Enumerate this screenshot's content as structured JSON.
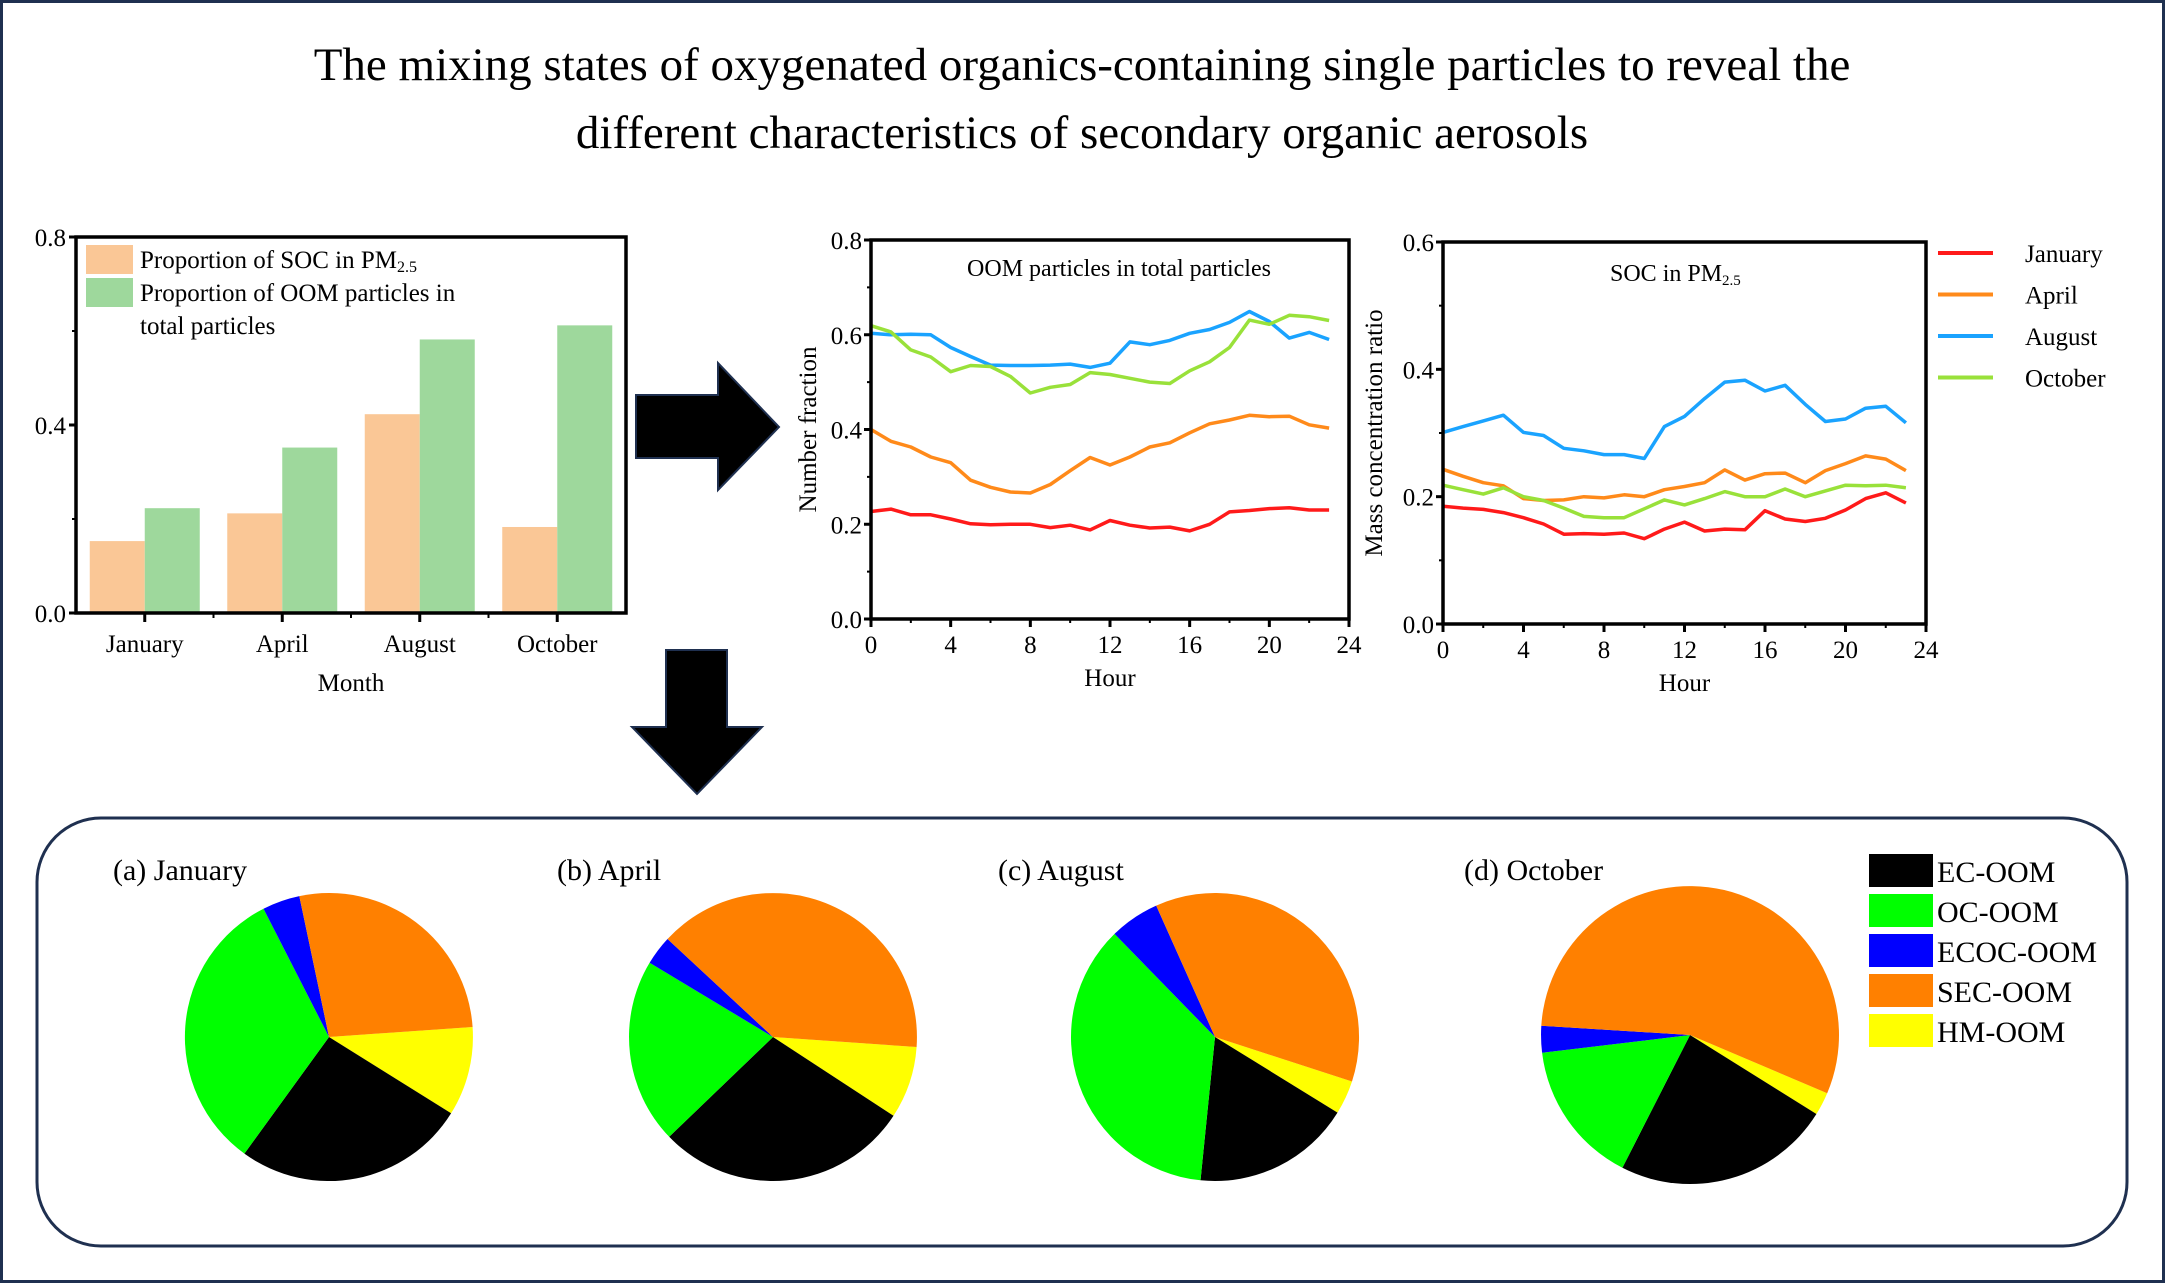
{
  "title": {
    "line1": "The mixing states of oxygenated organics-containing single particles to reveal the",
    "line2": "different characteristics of secondary organic aerosols"
  },
  "colors": {
    "frame": "#1f3050",
    "bar_soc": "#fac796",
    "bar_oom": "#9ed89c",
    "January": "#ff1a1a",
    "April": "#ff8a1a",
    "August": "#1aa3ff",
    "October": "#99e13a",
    "EC-OOM": "#000000",
    "OC-OOM": "#00ff00",
    "ECOC-OOM": "#0000ff",
    "SEC-OOM": "#ff8000",
    "HM-OOM": "#ffff00"
  },
  "chart_data": [
    {
      "type": "bar",
      "categories": [
        "January",
        "April",
        "August",
        "October"
      ],
      "xlabel": "Month",
      "ylabel": "",
      "ylim": [
        0,
        0.8
      ],
      "yticks": [
        "0.0",
        "0.4",
        "0.8"
      ],
      "legend_position": "top-left",
      "series": [
        {
          "name_main": "Proportion of SOC in PM",
          "name_sub": "2.5",
          "values": [
            0.153,
            0.212,
            0.423,
            0.183
          ]
        },
        {
          "name_line1": "Proportion of OOM particles in",
          "name_line2": "total particles",
          "values": [
            0.223,
            0.352,
            0.582,
            0.612
          ]
        }
      ]
    },
    {
      "type": "line",
      "title": "OOM particles in total particles",
      "xlabel": "Hour",
      "ylabel": "Number fraction",
      "xlim": [
        0,
        24
      ],
      "ylim": [
        0,
        0.8
      ],
      "xticks": [
        "0",
        "4",
        "8",
        "12",
        "16",
        "20",
        "24"
      ],
      "yticks": [
        "0.0",
        "0.2",
        "0.4",
        "0.6",
        "0.8"
      ],
      "x": [
        0,
        1,
        2,
        3,
        4,
        5,
        6,
        7,
        8,
        9,
        10,
        11,
        12,
        13,
        14,
        15,
        16,
        17,
        18,
        19,
        20,
        21,
        22,
        23
      ],
      "series": [
        {
          "name": "January",
          "values": [
            0.227,
            0.232,
            0.22,
            0.22,
            0.211,
            0.201,
            0.199,
            0.2,
            0.2,
            0.193,
            0.198,
            0.188,
            0.208,
            0.198,
            0.192,
            0.194,
            0.186,
            0.2,
            0.226,
            0.229,
            0.233,
            0.235,
            0.23,
            0.23
          ]
        },
        {
          "name": "April",
          "values": [
            0.4,
            0.375,
            0.363,
            0.342,
            0.33,
            0.293,
            0.278,
            0.268,
            0.266,
            0.284,
            0.313,
            0.341,
            0.325,
            0.342,
            0.363,
            0.372,
            0.393,
            0.412,
            0.42,
            0.43,
            0.427,
            0.428,
            0.41,
            0.403
          ]
        },
        {
          "name": "August",
          "values": [
            0.603,
            0.6,
            0.601,
            0.6,
            0.573,
            0.554,
            0.536,
            0.535,
            0.535,
            0.536,
            0.538,
            0.531,
            0.54,
            0.585,
            0.579,
            0.588,
            0.603,
            0.611,
            0.626,
            0.649,
            0.628,
            0.593,
            0.605,
            0.59
          ]
        },
        {
          "name": "October",
          "values": [
            0.619,
            0.606,
            0.568,
            0.553,
            0.522,
            0.535,
            0.533,
            0.512,
            0.477,
            0.489,
            0.495,
            0.52,
            0.516,
            0.508,
            0.5,
            0.497,
            0.524,
            0.543,
            0.573,
            0.631,
            0.622,
            0.641,
            0.638,
            0.63
          ]
        }
      ]
    },
    {
      "type": "line",
      "title_main": "SOC in PM",
      "title_sub": "2.5",
      "xlabel": "Hour",
      "ylabel": "Mass concentration ratio",
      "xlim": [
        0,
        24
      ],
      "ylim": [
        0,
        0.6
      ],
      "xticks": [
        "0",
        "4",
        "8",
        "12",
        "16",
        "20",
        "24"
      ],
      "yticks": [
        "0.0",
        "0.2",
        "0.4",
        "0.6"
      ],
      "legend_position": "right",
      "x": [
        0,
        1,
        2,
        3,
        4,
        5,
        6,
        7,
        8,
        9,
        10,
        11,
        12,
        13,
        14,
        15,
        16,
        17,
        18,
        19,
        20,
        21,
        22,
        23
      ],
      "series": [
        {
          "name": "January",
          "values": [
            0.185,
            0.182,
            0.18,
            0.175,
            0.167,
            0.157,
            0.141,
            0.142,
            0.141,
            0.143,
            0.134,
            0.149,
            0.16,
            0.146,
            0.149,
            0.148,
            0.178,
            0.165,
            0.161,
            0.166,
            0.179,
            0.197,
            0.206,
            0.19
          ]
        },
        {
          "name": "April",
          "values": [
            0.243,
            0.232,
            0.222,
            0.217,
            0.197,
            0.194,
            0.195,
            0.2,
            0.198,
            0.203,
            0.2,
            0.211,
            0.216,
            0.222,
            0.242,
            0.226,
            0.236,
            0.237,
            0.222,
            0.241,
            0.252,
            0.264,
            0.259,
            0.241
          ]
        },
        {
          "name": "August",
          "values": [
            0.301,
            0.31,
            0.319,
            0.328,
            0.301,
            0.296,
            0.276,
            0.272,
            0.266,
            0.266,
            0.26,
            0.31,
            0.326,
            0.354,
            0.38,
            0.383,
            0.366,
            0.375,
            0.345,
            0.318,
            0.322,
            0.339,
            0.342,
            0.316
          ]
        },
        {
          "name": "October",
          "values": [
            0.218,
            0.211,
            0.204,
            0.214,
            0.2,
            0.194,
            0.182,
            0.169,
            0.167,
            0.167,
            0.181,
            0.195,
            0.187,
            0.197,
            0.208,
            0.2,
            0.2,
            0.212,
            0.2,
            0.209,
            0.218,
            0.217,
            0.218,
            0.214
          ]
        }
      ]
    },
    {
      "type": "pie",
      "categories": [
        "EC-OOM",
        "OC-OOM",
        "ECOC-OOM",
        "SEC-OOM",
        "HM-OOM"
      ],
      "legend_position": "right",
      "pies": [
        {
          "label": "(a) January",
          "values": [
            26.1,
            32.5,
            4.2,
            27.2,
            10.0
          ]
        },
        {
          "label": "(b) April",
          "values": [
            28.6,
            20.8,
            3.3,
            39.2,
            8.1
          ]
        },
        {
          "label": "(c) August",
          "values": [
            17.8,
            36.1,
            5.6,
            36.7,
            3.8
          ]
        },
        {
          "label": "(d) October",
          "values": [
            23.6,
            15.6,
            2.9,
            55.4,
            2.5
          ]
        }
      ]
    }
  ]
}
